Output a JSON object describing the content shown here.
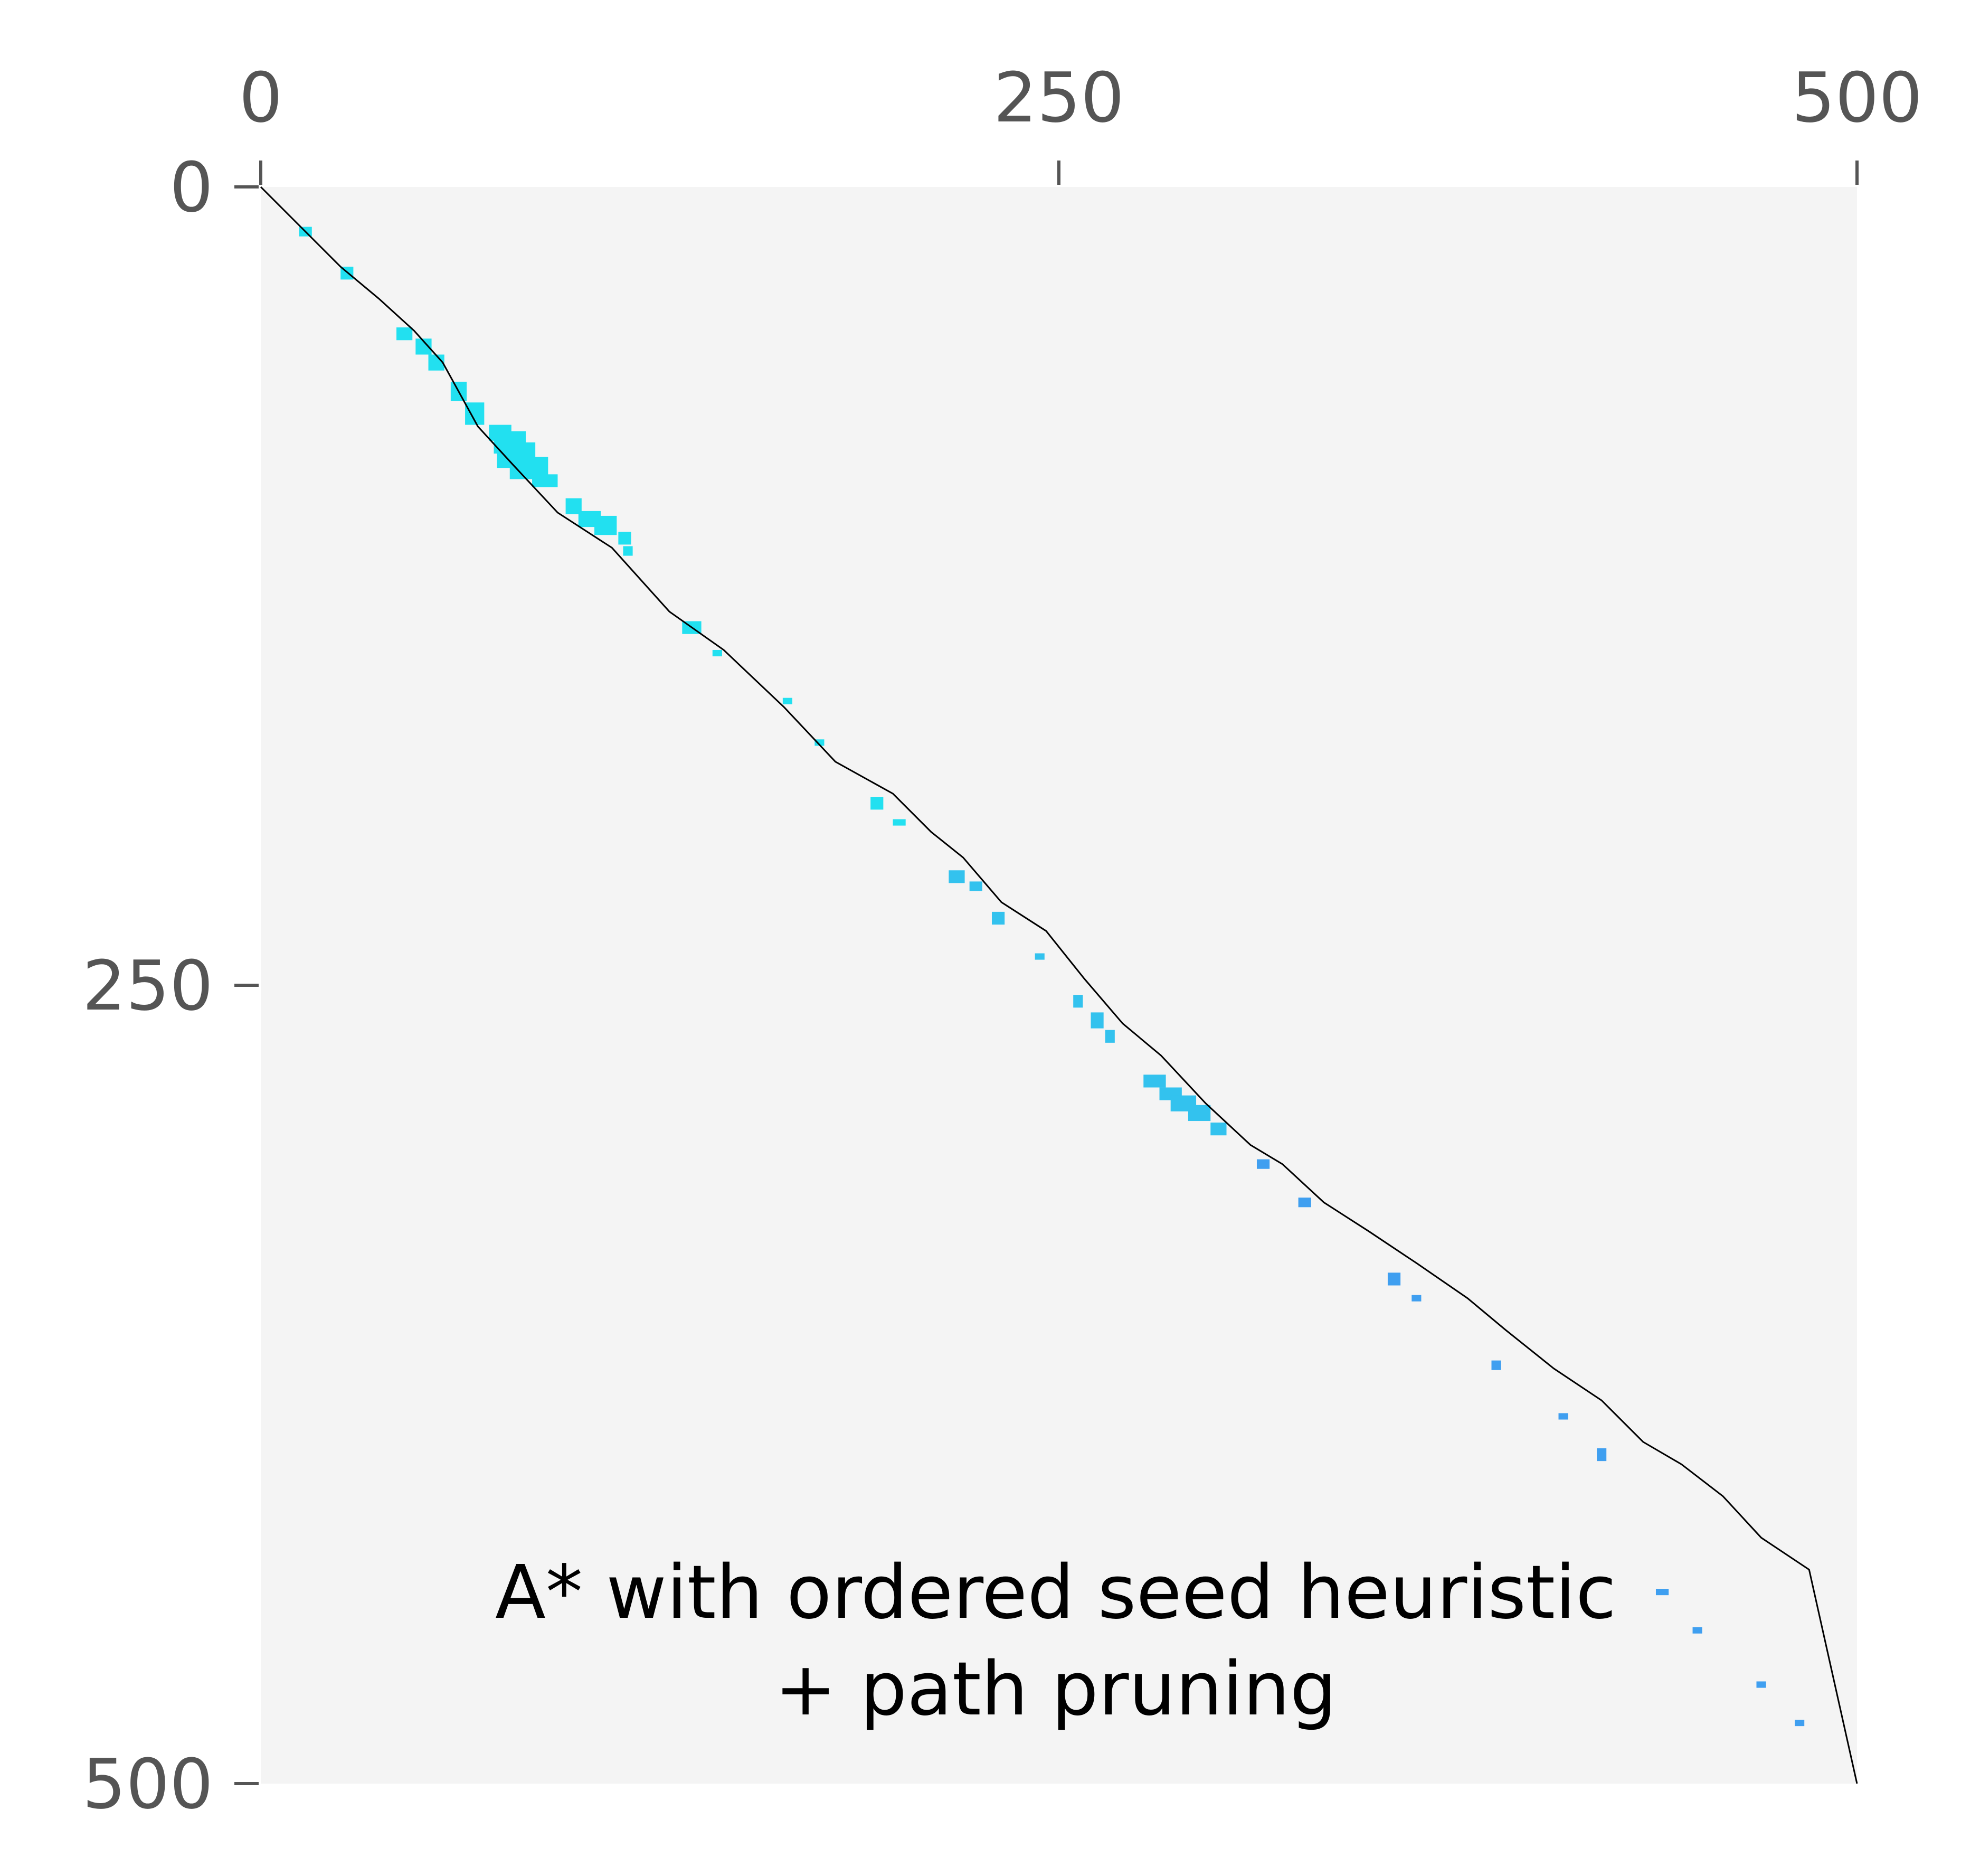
{
  "chart_data": {
    "type": "heatmap",
    "title": "",
    "xlabel": "",
    "ylabel": "",
    "annotation": [
      "A* with ordered seed heuristic",
      "+ path pruning"
    ],
    "xlim": [
      0,
      500
    ],
    "ylim": [
      500,
      0
    ],
    "x_ticks": [
      0,
      250,
      500
    ],
    "y_ticks": [
      0,
      250,
      500
    ],
    "x_axis_position": "top",
    "grid": false,
    "legend": "none",
    "colors": {
      "background": "#f4f4f4",
      "path": "#000000",
      "explored_early": "#22e0f0",
      "explored_late": "#3f9ff0",
      "tick_label": "#555555",
      "tick_mark": "#555555"
    },
    "path": [
      [
        0,
        0
      ],
      [
        13,
        13
      ],
      [
        25,
        25
      ],
      [
        37,
        35
      ],
      [
        48,
        45
      ],
      [
        57,
        55
      ],
      [
        68,
        75
      ],
      [
        79,
        87
      ],
      [
        93,
        102
      ],
      [
        110,
        113
      ],
      [
        128,
        133
      ],
      [
        145,
        145
      ],
      [
        164,
        163
      ],
      [
        180,
        180
      ],
      [
        198,
        190
      ],
      [
        210,
        202
      ],
      [
        220,
        210
      ],
      [
        232,
        224
      ],
      [
        246,
        233
      ],
      [
        258,
        248
      ],
      [
        270,
        262
      ],
      [
        282,
        272
      ],
      [
        296,
        287
      ],
      [
        310,
        300
      ],
      [
        320,
        306
      ],
      [
        333,
        318
      ],
      [
        347,
        327
      ],
      [
        362,
        337
      ],
      [
        378,
        348
      ],
      [
        390,
        358
      ],
      [
        405,
        370
      ],
      [
        420,
        380
      ],
      [
        433,
        393
      ],
      [
        445,
        400
      ],
      [
        458,
        410
      ],
      [
        470,
        423
      ],
      [
        485,
        433
      ],
      [
        500,
        500
      ]
    ],
    "explored_cells": [
      {
        "x": 14,
        "y": 14,
        "w": 4,
        "h": 3,
        "c": "early"
      },
      {
        "x": 27,
        "y": 27,
        "w": 4,
        "h": 4,
        "c": "early"
      },
      {
        "x": 45,
        "y": 46,
        "w": 5,
        "h": 4,
        "c": "early"
      },
      {
        "x": 51,
        "y": 50,
        "w": 5,
        "h": 5,
        "c": "early"
      },
      {
        "x": 55,
        "y": 55,
        "w": 5,
        "h": 5,
        "c": "early"
      },
      {
        "x": 62,
        "y": 64,
        "w": 5,
        "h": 6,
        "c": "early"
      },
      {
        "x": 67,
        "y": 71,
        "w": 6,
        "h": 7,
        "c": "early"
      },
      {
        "x": 75,
        "y": 77,
        "w": 7,
        "h": 5,
        "c": "early"
      },
      {
        "x": 78,
        "y": 80,
        "w": 10,
        "h": 7,
        "c": "early"
      },
      {
        "x": 80,
        "y": 84,
        "w": 12,
        "h": 8,
        "c": "early"
      },
      {
        "x": 84,
        "y": 88,
        "w": 12,
        "h": 7,
        "c": "early"
      },
      {
        "x": 89,
        "y": 92,
        "w": 8,
        "h": 4,
        "c": "early"
      },
      {
        "x": 98,
        "y": 100,
        "w": 5,
        "h": 5,
        "c": "early"
      },
      {
        "x": 103,
        "y": 104,
        "w": 7,
        "h": 5,
        "c": "early"
      },
      {
        "x": 108,
        "y": 106,
        "w": 7,
        "h": 6,
        "c": "early"
      },
      {
        "x": 114,
        "y": 110,
        "w": 4,
        "h": 4,
        "c": "early"
      },
      {
        "x": 115,
        "y": 114,
        "w": 3,
        "h": 3,
        "c": "early"
      },
      {
        "x": 135,
        "y": 138,
        "w": 6,
        "h": 4,
        "c": "early"
      },
      {
        "x": 143,
        "y": 146,
        "w": 3,
        "h": 2,
        "c": "early"
      },
      {
        "x": 165,
        "y": 161,
        "w": 3,
        "h": 2,
        "c": "early"
      },
      {
        "x": 175,
        "y": 174,
        "w": 3,
        "h": 2,
        "c": "early"
      },
      {
        "x": 193,
        "y": 193,
        "w": 4,
        "h": 4,
        "c": "early"
      },
      {
        "x": 200,
        "y": 199,
        "w": 4,
        "h": 2,
        "c": "early"
      },
      {
        "x": 218,
        "y": 216,
        "w": 5,
        "h": 4,
        "c": "mid"
      },
      {
        "x": 224,
        "y": 219,
        "w": 4,
        "h": 3,
        "c": "mid"
      },
      {
        "x": 231,
        "y": 229,
        "w": 4,
        "h": 4,
        "c": "mid"
      },
      {
        "x": 244,
        "y": 241,
        "w": 3,
        "h": 2,
        "c": "mid"
      },
      {
        "x": 256,
        "y": 255,
        "w": 3,
        "h": 4,
        "c": "mid"
      },
      {
        "x": 262,
        "y": 261,
        "w": 4,
        "h": 5,
        "c": "mid"
      },
      {
        "x": 266,
        "y": 266,
        "w": 3,
        "h": 4,
        "c": "mid"
      },
      {
        "x": 280,
        "y": 280,
        "w": 7,
        "h": 4,
        "c": "mid"
      },
      {
        "x": 285,
        "y": 284,
        "w": 7,
        "h": 4,
        "c": "mid"
      },
      {
        "x": 289,
        "y": 287,
        "w": 8,
        "h": 5,
        "c": "mid"
      },
      {
        "x": 294,
        "y": 290,
        "w": 7,
        "h": 5,
        "c": "mid"
      },
      {
        "x": 300,
        "y": 295,
        "w": 5,
        "h": 4,
        "c": "mid"
      },
      {
        "x": 314,
        "y": 306,
        "w": 4,
        "h": 3,
        "c": "late"
      },
      {
        "x": 327,
        "y": 318,
        "w": 4,
        "h": 3,
        "c": "late"
      },
      {
        "x": 355,
        "y": 342,
        "w": 4,
        "h": 4,
        "c": "late"
      },
      {
        "x": 362,
        "y": 348,
        "w": 3,
        "h": 2,
        "c": "late"
      },
      {
        "x": 387,
        "y": 369,
        "w": 3,
        "h": 3,
        "c": "late"
      },
      {
        "x": 408,
        "y": 385,
        "w": 3,
        "h": 2,
        "c": "late"
      },
      {
        "x": 420,
        "y": 397,
        "w": 3,
        "h": 4,
        "c": "late"
      },
      {
        "x": 439,
        "y": 440,
        "w": 4,
        "h": 2,
        "c": "late"
      },
      {
        "x": 450,
        "y": 452,
        "w": 3,
        "h": 2,
        "c": "late"
      },
      {
        "x": 470,
        "y": 469,
        "w": 3,
        "h": 2,
        "c": "late"
      },
      {
        "x": 482,
        "y": 481,
        "w": 3,
        "h": 2,
        "c": "late"
      }
    ]
  }
}
